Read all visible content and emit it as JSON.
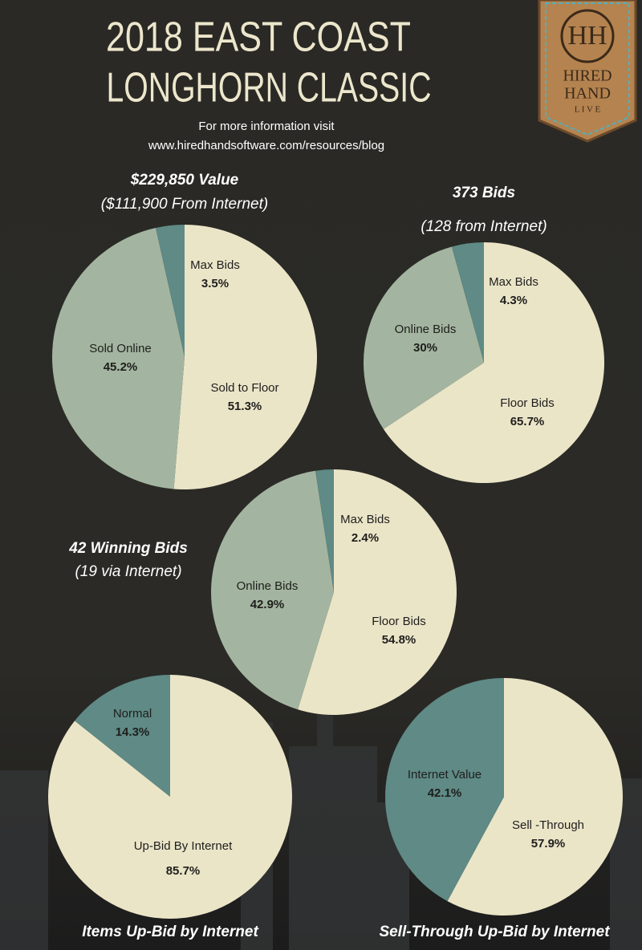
{
  "header": {
    "title_line1": "2018 EAST COAST",
    "title_line2": "LONGHORN CLASSIC",
    "info": "For more information visit",
    "url": "www.hiredhandsoftware.com/resources/blog"
  },
  "logo": {
    "monogram": "HH",
    "line1": "HIRED",
    "line2": "HAND",
    "line3": "L I V E"
  },
  "chart_data": [
    {
      "type": "pie",
      "title": "$229,850 Value",
      "subtitle": "($111,900 From Internet)",
      "categories": [
        "Sold to Floor",
        "Sold Online",
        "Max Bids"
      ],
      "values": [
        51.3,
        45.2,
        3.5
      ],
      "value_labels": [
        "51.3%",
        "45.2%",
        "3.5%"
      ],
      "colors": [
        "#ebe5c8",
        "#a3b5a0",
        "#5f8a85"
      ]
    },
    {
      "type": "pie",
      "title": "373 Bids",
      "subtitle": "(128 from Internet)",
      "categories": [
        "Floor Bids",
        "Online Bids",
        "Max Bids"
      ],
      "values": [
        65.7,
        30,
        4.3
      ],
      "value_labels": [
        "65.7%",
        "30%",
        "4.3%"
      ],
      "colors": [
        "#ebe5c8",
        "#a3b5a0",
        "#5f8a85"
      ]
    },
    {
      "type": "pie",
      "title": "42 Winning Bids",
      "subtitle": "(19 via Internet)",
      "categories": [
        "Floor Bids",
        "Online Bids",
        "Max Bids"
      ],
      "values": [
        54.8,
        42.9,
        2.4
      ],
      "value_labels": [
        "54.8%",
        "42.9%",
        "2.4%"
      ],
      "colors": [
        "#ebe5c8",
        "#a3b5a0",
        "#5f8a85"
      ]
    },
    {
      "type": "pie",
      "title": "Items Up-Bid by Internet",
      "categories": [
        "Up-Bid By Internet",
        "Normal"
      ],
      "values": [
        85.7,
        14.3
      ],
      "value_labels": [
        "85.7%",
        "14.3%"
      ],
      "colors": [
        "#ebe5c8",
        "#5f8a85"
      ]
    },
    {
      "type": "pie",
      "title": "Sell-Through Up-Bid by Internet",
      "categories": [
        "Sell -Through",
        "Internet Value"
      ],
      "values": [
        57.9,
        42.1
      ],
      "value_labels": [
        "57.9%",
        "42.1%"
      ],
      "colors": [
        "#ebe5c8",
        "#5f8a85"
      ]
    }
  ]
}
